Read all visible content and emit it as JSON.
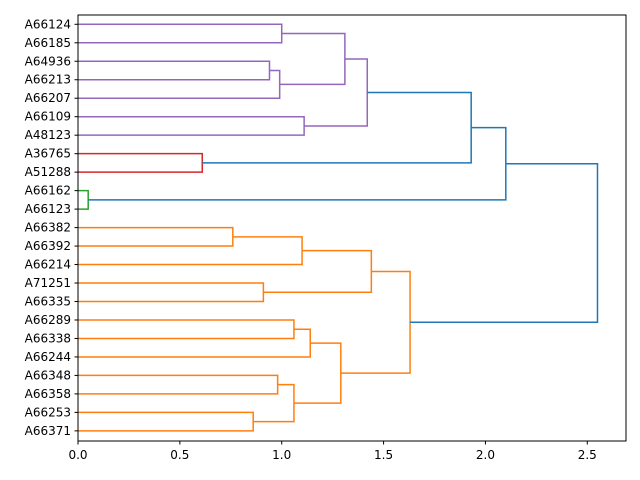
{
  "chart_data": {
    "type": "dendrogram",
    "orientation": "horizontal",
    "title": "",
    "xlabel": "",
    "ylabel": "",
    "xlim": [
      0,
      2.69
    ],
    "x_ticks": [
      0.0,
      0.5,
      1.0,
      1.5,
      2.0,
      2.5
    ],
    "x_tick_labels": [
      "0.0",
      "0.5",
      "1.0",
      "1.5",
      "2.0",
      "2.5"
    ],
    "leaves": [
      "A66124",
      "A66185",
      "A64936",
      "A66213",
      "A66207",
      "A66109",
      "A48123",
      "A36765",
      "A51288",
      "A66162",
      "A66123",
      "A66382",
      "A66392",
      "A66214",
      "A71251",
      "A66335",
      "A66289",
      "A66338",
      "A66244",
      "A66348",
      "A66358",
      "A66253",
      "A66371"
    ],
    "colors": {
      "purple": "#9467bd",
      "red": "#d62728",
      "green": "#2ca02c",
      "orange": "#ff7f0e",
      "blue": "#1f77b4"
    },
    "merges": [
      {
        "id": "m1",
        "left": "A64936",
        "right": "A66213",
        "height": 0.94,
        "color": "purple"
      },
      {
        "id": "m2",
        "left": "m1",
        "right": "A66207",
        "height": 0.99,
        "color": "purple"
      },
      {
        "id": "m3",
        "left": "A66124",
        "right": "A66185",
        "height": 1.0,
        "color": "purple"
      },
      {
        "id": "m4",
        "left": "m3",
        "right": "m2",
        "height": 1.31,
        "color": "purple"
      },
      {
        "id": "m5",
        "left": "A66109",
        "right": "A48123",
        "height": 1.11,
        "color": "purple"
      },
      {
        "id": "m6",
        "left": "m4",
        "right": "m5",
        "height": 1.42,
        "color": "purple"
      },
      {
        "id": "m7",
        "left": "A36765",
        "right": "A51288",
        "height": 0.61,
        "color": "red"
      },
      {
        "id": "m8",
        "left": "m6",
        "right": "m7",
        "height": 1.93,
        "color": "blue"
      },
      {
        "id": "m9",
        "left": "A66162",
        "right": "A66123",
        "height": 0.05,
        "color": "green"
      },
      {
        "id": "m10",
        "left": "m8",
        "right": "m9",
        "height": 2.1,
        "color": "blue"
      },
      {
        "id": "m11",
        "left": "A66382",
        "right": "A66392",
        "height": 0.76,
        "color": "orange"
      },
      {
        "id": "m12",
        "left": "m11",
        "right": "A66214",
        "height": 1.1,
        "color": "orange"
      },
      {
        "id": "m13",
        "left": "A71251",
        "right": "A66335",
        "height": 0.91,
        "color": "orange"
      },
      {
        "id": "m14",
        "left": "m12",
        "right": "m13",
        "height": 1.44,
        "color": "orange"
      },
      {
        "id": "m15",
        "left": "A66289",
        "right": "A66338",
        "height": 1.06,
        "color": "orange"
      },
      {
        "id": "m16",
        "left": "m15",
        "right": "A66244",
        "height": 1.14,
        "color": "orange"
      },
      {
        "id": "m17",
        "left": "A66348",
        "right": "A66358",
        "height": 0.98,
        "color": "orange"
      },
      {
        "id": "m18",
        "left": "A66253",
        "right": "A66371",
        "height": 0.86,
        "color": "orange"
      },
      {
        "id": "m19",
        "left": "m17",
        "right": "m18",
        "height": 1.06,
        "color": "orange"
      },
      {
        "id": "m20",
        "left": "m16",
        "right": "m19",
        "height": 1.29,
        "color": "orange"
      },
      {
        "id": "m21",
        "left": "m14",
        "right": "m20",
        "height": 1.63,
        "color": "orange"
      },
      {
        "id": "m22",
        "left": "m10",
        "right": "m21",
        "height": 2.55,
        "color": "blue"
      }
    ]
  }
}
